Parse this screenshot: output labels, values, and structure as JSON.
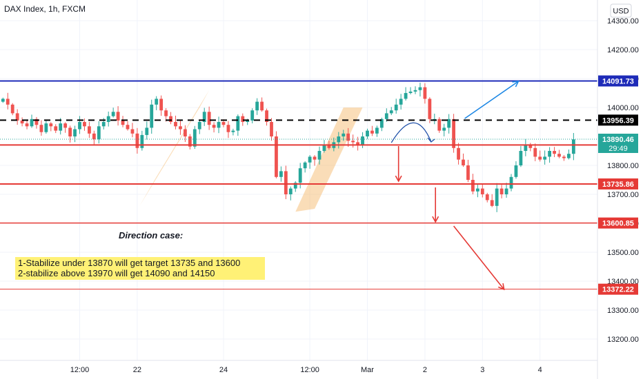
{
  "header": {
    "symbol": "DAX Index, 1h, FXCM",
    "currency": "USD"
  },
  "colors": {
    "up": "#26a69a",
    "down": "#ef5350",
    "support": "#e53935",
    "resistance": "#1e2bb8",
    "dashed": "#000000",
    "current": "#26a69a",
    "wedge": "#f5b461",
    "note_bg": "#fff176"
  },
  "chart_data": {
    "type": "candlestick",
    "ylim": [
      13150,
      14330
    ],
    "y_ticks": [
      13200,
      13300,
      13400,
      13500,
      13600,
      13700,
      13800,
      14000,
      14100,
      14200,
      14300
    ],
    "y_tick_labels": [
      "13200.00",
      "13300.00",
      "13400.00",
      "13500.00",
      "13600.00",
      "13700.00",
      "13800.00",
      "14000.00",
      "14100.00",
      "14200.00",
      "14300.00"
    ],
    "x_ticks": [
      {
        "x": 16,
        "label": "12:00"
      },
      {
        "x": 28,
        "label": "22"
      },
      {
        "x": 46,
        "label": "24"
      },
      {
        "x": 64,
        "label": "12:00"
      },
      {
        "x": 76,
        "label": "Mar"
      },
      {
        "x": 88,
        "label": "2"
      },
      {
        "x": 100,
        "label": "3"
      },
      {
        "x": 112,
        "label": "4"
      }
    ],
    "closes": [
      14030,
      14010,
      13980,
      13955,
      13945,
      13935,
      13960,
      13940,
      13915,
      13945,
      13935,
      13920,
      13945,
      13930,
      13900,
      13925,
      13950,
      13935,
      13910,
      13890,
      13935,
      13950,
      13970,
      13985,
      13955,
      13940,
      13925,
      13910,
      13860,
      13905,
      13930,
      14010,
      14030,
      13990,
      13970,
      13950,
      13935,
      13925,
      13900,
      13865,
      13925,
      13950,
      13985,
      13940,
      13930,
      13950,
      13940,
      13915,
      13920,
      13970,
      13950,
      13955,
      13990,
      14020,
      13990,
      13950,
      13900,
      13760,
      13780,
      13700,
      13720,
      13740,
      13790,
      13810,
      13830,
      13820,
      13850,
      13870,
      13860,
      13880,
      13900,
      13910,
      13885,
      13880,
      13870,
      13900,
      13920,
      13910,
      13930,
      13960,
      13980,
      13990,
      14010,
      14030,
      14050,
      14055,
      14060,
      14070,
      14030,
      13960,
      13960,
      13920,
      13930,
      13960,
      13860,
      13820,
      13800,
      13750,
      13710,
      13720,
      13700,
      13680,
      13660,
      13720,
      13700,
      13720,
      13760,
      13800,
      13850,
      13870,
      13860,
      13830,
      13820,
      13830,
      13850,
      13840,
      13830,
      13825,
      13840,
      13890
    ],
    "levels": [
      {
        "value": 14091.73,
        "label": "14091.73",
        "style": "solid",
        "color": "#1e2bb8",
        "text_color": "#ffffff",
        "box_color": "#1e2bb8",
        "width": 2
      },
      {
        "value": 13956.39,
        "label": "13956.39",
        "style": "dashed",
        "color": "#000000",
        "text_color": "#ffffff",
        "box_color": "#000000",
        "width": 2
      },
      {
        "value": 13870.52,
        "label": "13870.52",
        "style": "solid",
        "color": "#e53935",
        "text_color": "#ffffff",
        "box_color": "#e53935",
        "width": 2
      },
      {
        "value": 13735.86,
        "label": "13735.86",
        "style": "solid",
        "color": "#e53935",
        "text_color": "#ffffff",
        "box_color": "#e53935",
        "width": 2
      },
      {
        "value": 13600.85,
        "label": "13600.85",
        "style": "solid",
        "color": "#e53935",
        "text_color": "#ffffff",
        "box_color": "#e53935",
        "width": 1.5
      },
      {
        "value": 13372.22,
        "label": "13372.22",
        "style": "solid",
        "color": "#e53935",
        "text_color": "#ffffff",
        "box_color": "#e53935",
        "width": 1
      }
    ],
    "current": {
      "price": 13890.46,
      "label": "13890.46",
      "countdown": "29:49"
    },
    "wedges": [
      {
        "pts": [
          [
            28.5,
            13660
          ],
          [
            41,
            14000
          ],
          [
            43,
            14060
          ],
          [
            32,
            13760
          ]
        ]
      },
      {
        "pts": [
          [
            61,
            13640
          ],
          [
            71,
            14000
          ],
          [
            75,
            14000
          ],
          [
            65,
            13650
          ]
        ]
      }
    ],
    "annotations": {
      "title": "Direction case:",
      "lines": [
        "1-Stabilize under 13870 will get target 13735 and 13600",
        "2-stabilize above 13970 will get 14090 and 14150"
      ]
    }
  }
}
